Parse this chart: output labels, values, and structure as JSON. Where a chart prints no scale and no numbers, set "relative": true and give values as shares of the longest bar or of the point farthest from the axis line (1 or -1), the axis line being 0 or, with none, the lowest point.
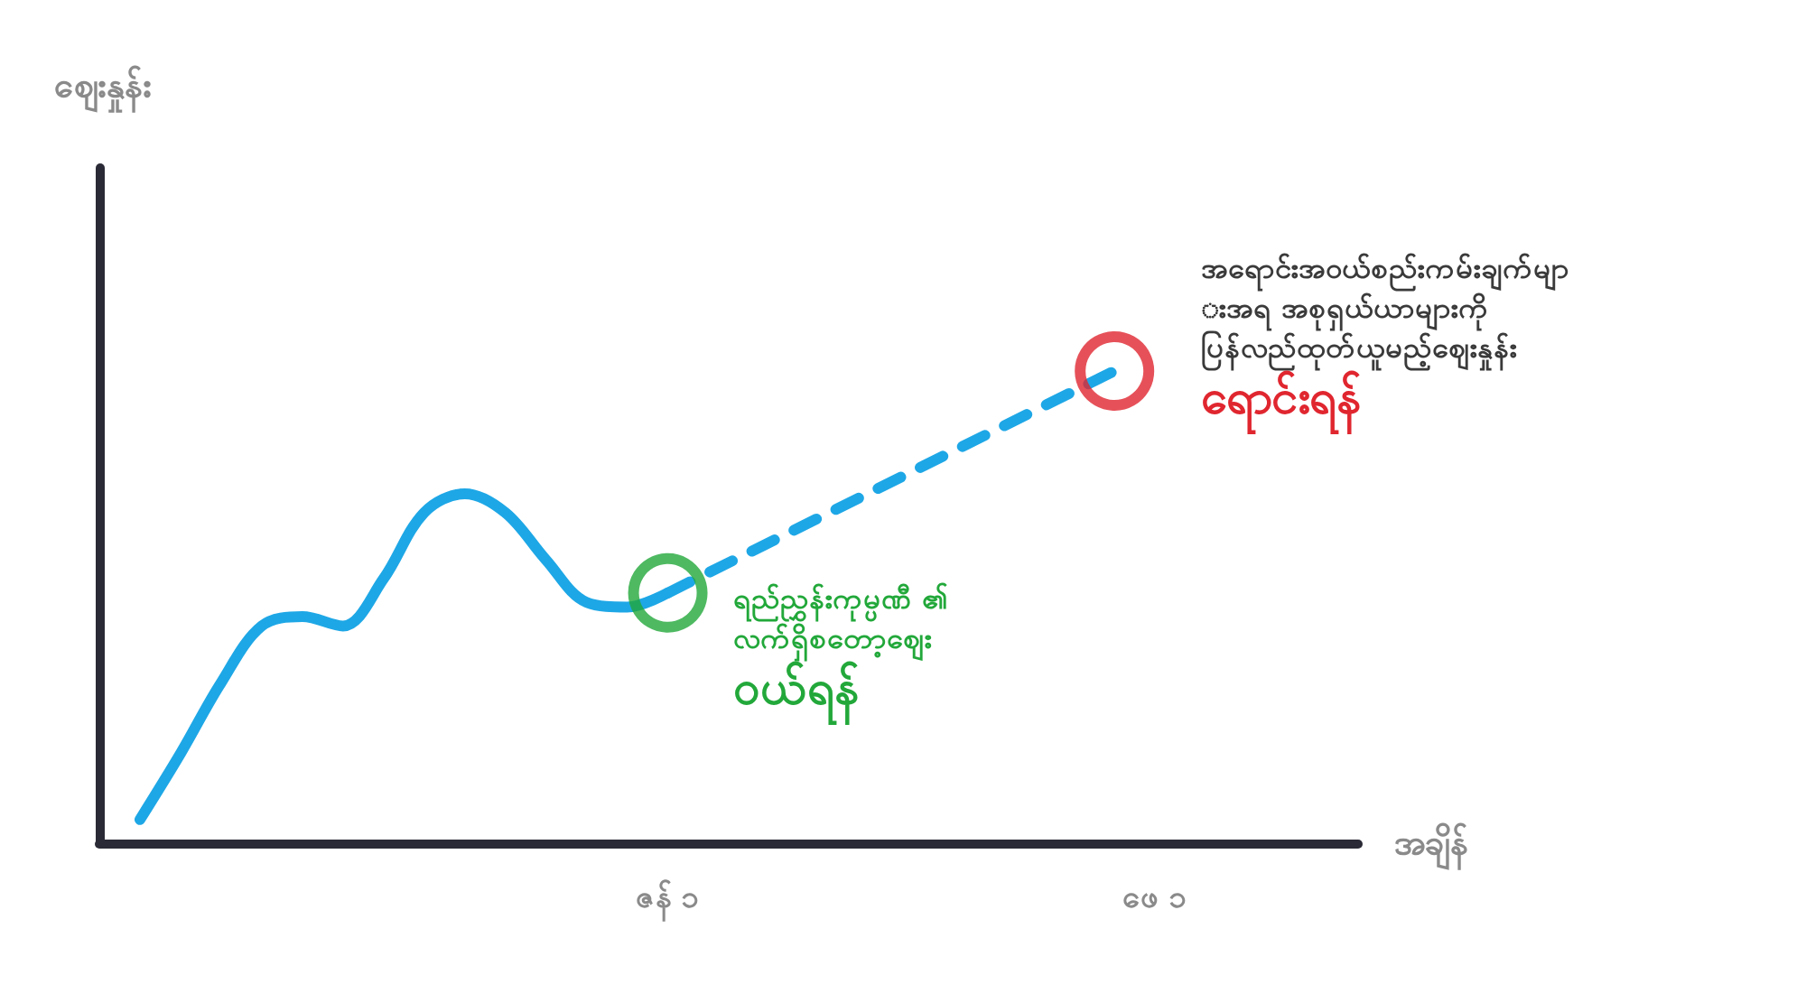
{
  "chart_data": {
    "type": "line",
    "relative": true,
    "xlabel": "အချိန်",
    "categories": [
      null,
      null,
      null,
      null,
      null,
      null,
      null,
      null,
      null,
      null,
      null,
      null,
      null,
      null,
      "ဇန် ၁",
      null,
      null,
      null,
      null,
      null,
      null,
      null,
      null,
      null,
      null,
      null,
      "ဖေ ၁",
      null,
      null,
      null,
      null,
      null
    ],
    "grid": false,
    "series": [
      {
        "color": "#1ea7e6",
        "line_style": "solid",
        "marker": "none",
        "values": [
          null,
          0.05,
          0.19,
          0.34,
          0.46,
          0.48,
          0.46,
          0.56,
          0.7,
          0.74,
          0.7,
          0.6,
          0.51,
          0.5,
          0.53,
          null,
          null,
          null,
          null,
          null,
          null,
          null,
          null,
          null,
          null,
          null,
          null,
          null,
          null,
          null,
          null,
          null
        ]
      },
      {
        "color": "#1ea7e6",
        "line_style": "dashed",
        "marker": "none",
        "values": [
          null,
          null,
          null,
          null,
          null,
          null,
          null,
          null,
          null,
          null,
          null,
          null,
          null,
          null,
          0.53,
          null,
          null,
          null,
          null,
          null,
          null,
          null,
          null,
          null,
          null,
          1,
          null,
          null,
          null,
          null,
          null,
          null
        ]
      },
      {
        "type": "scatter",
        "color": "#22a83a",
        "marker": "circle",
        "values": [
          null,
          null,
          null,
          null,
          null,
          null,
          null,
          null,
          null,
          null,
          null,
          null,
          null,
          null,
          0.53,
          null,
          null,
          null,
          null,
          null,
          null,
          null,
          null,
          null,
          null,
          null,
          null,
          null,
          null,
          null,
          null,
          null
        ]
      },
      {
        "type": "scatter",
        "color": "#e0262f",
        "marker": "circle",
        "values": [
          null,
          null,
          null,
          null,
          null,
          null,
          null,
          null,
          null,
          null,
          null,
          null,
          null,
          null,
          null,
          null,
          null,
          null,
          null,
          null,
          null,
          null,
          null,
          null,
          null,
          1,
          null,
          null,
          null,
          null,
          null,
          null
        ]
      }
    ],
    "annotations": [
      {
        "text": "ရည်ညွှန်းကုမ္ပဏီ ၏\nလက်ရှိစတော့ဈေး\nဝယ်ရန်",
        "x": "ဇန် ၁",
        "y": 0.53
      },
      "အရောင်းအဝယ်စည်းကမ်းချက်မျာ\nးအရ အစုရှယ်ယာများကို\nပြန်လည်ထုတ်ယူမည့်ဈေးနှုန်း\nရောင်းရန်",
      "ဈေးနှုန်း"
    ]
  }
}
